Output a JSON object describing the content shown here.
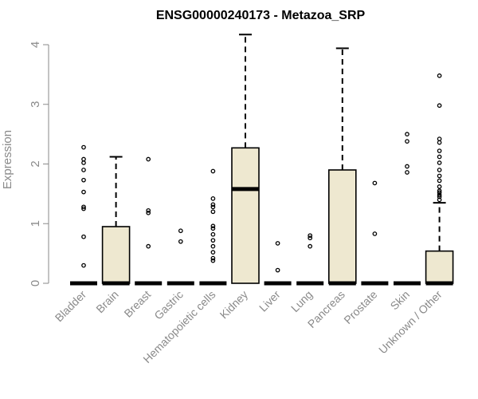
{
  "chart_data": {
    "type": "boxplot",
    "title": "ENSG00000240173 - Metazoa_SRP",
    "ylabel": "Expression",
    "ylim": [
      0,
      4.2
    ],
    "yticks": [
      0,
      1,
      2,
      3,
      4
    ],
    "grid": false,
    "box_fill": "#EEE8D0",
    "categories": [
      "Bladder",
      "Brain",
      "Breast",
      "Gastric",
      "Hematopoietic cells",
      "Kidney",
      "Liver",
      "Lung",
      "Pancreas",
      "Prostate",
      "Skin",
      "Unknown / Other"
    ],
    "boxes": [
      {
        "q1": 0,
        "median": 0,
        "q3": 0,
        "whisker_low": 0,
        "whisker_high": 0,
        "outliers": [
          0.3,
          0.78,
          1.25,
          1.28,
          1.53,
          1.73,
          1.9,
          2.02,
          2.08,
          2.28
        ]
      },
      {
        "q1": 0,
        "median": 0,
        "q3": 0.95,
        "whisker_low": 0,
        "whisker_high": 2.12,
        "outliers": []
      },
      {
        "q1": 0,
        "median": 0,
        "q3": 0,
        "whisker_low": 0,
        "whisker_high": 0,
        "outliers": [
          0.62,
          1.18,
          1.22,
          2.08
        ]
      },
      {
        "q1": 0,
        "median": 0,
        "q3": 0,
        "whisker_low": 0,
        "whisker_high": 0,
        "outliers": [
          0.7,
          0.88
        ]
      },
      {
        "q1": 0,
        "median": 0,
        "q3": 0,
        "whisker_low": 0,
        "whisker_high": 0,
        "outliers": [
          0.38,
          0.42,
          0.52,
          0.62,
          0.72,
          0.82,
          0.92,
          0.96,
          1.2,
          1.28,
          1.32,
          1.42,
          1.88
        ]
      },
      {
        "q1": 0,
        "median": 1.58,
        "q3": 2.27,
        "whisker_low": 0,
        "whisker_high": 4.17,
        "outliers": []
      },
      {
        "q1": 0,
        "median": 0,
        "q3": 0,
        "whisker_low": 0,
        "whisker_high": 0,
        "outliers": [
          0.22,
          0.67
        ]
      },
      {
        "q1": 0,
        "median": 0,
        "q3": 0,
        "whisker_low": 0,
        "whisker_high": 0,
        "outliers": [
          0.62,
          0.76,
          0.8
        ]
      },
      {
        "q1": 0,
        "median": 0,
        "q3": 1.9,
        "whisker_low": 0,
        "whisker_high": 3.94,
        "outliers": []
      },
      {
        "q1": 0,
        "median": 0,
        "q3": 0,
        "whisker_low": 0,
        "whisker_high": 0,
        "outliers": [
          0.83,
          1.68
        ]
      },
      {
        "q1": 0,
        "median": 0,
        "q3": 0,
        "whisker_low": 0,
        "whisker_high": 0,
        "outliers": [
          1.86,
          1.96,
          2.38,
          2.5
        ]
      },
      {
        "q1": 0,
        "median": 0,
        "q3": 0.54,
        "whisker_low": 0,
        "whisker_high": 1.35,
        "outliers": [
          1.4,
          1.45,
          1.48,
          1.52,
          1.55,
          1.62,
          1.72,
          1.8,
          1.9,
          2.02,
          2.12,
          2.22,
          2.36,
          2.42,
          2.98,
          3.48
        ]
      }
    ]
  }
}
